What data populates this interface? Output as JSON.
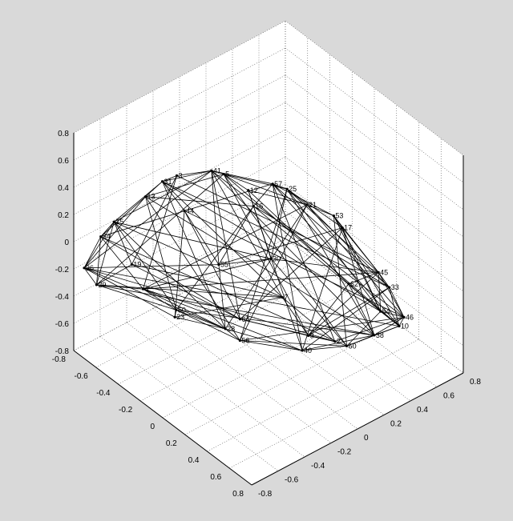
{
  "chart_data": {
    "type": "network-3d",
    "title": "",
    "xlabel": "",
    "ylabel": "",
    "zlabel": "",
    "xlim": [
      -0.8,
      0.8
    ],
    "ylim": [
      -0.8,
      0.8
    ],
    "zlim": [
      -0.8,
      0.8
    ],
    "grid": true,
    "z_ticks": [
      "-0.8",
      "-0.6",
      "-0.4",
      "-0.2",
      "0",
      "0.2",
      "0.4",
      "0.6",
      "0.8"
    ],
    "x_ticks": [
      "-0.8",
      "-0.6",
      "-0.4",
      "-0.2",
      "0",
      "0.2",
      "0.4",
      "0.6",
      "0.8"
    ],
    "y_ticks": [
      "-0.8",
      "-0.6",
      "-0.4",
      "-0.2",
      "0",
      "0.2",
      "0.4",
      "0.6",
      "0.8"
    ],
    "nodes": [
      {
        "id": "41",
        "x": -0.12,
        "y": -0.33,
        "z": 0.7
      },
      {
        "id": "5",
        "x": -0.07,
        "y": -0.28,
        "z": 0.68
      },
      {
        "id": "57",
        "x": 0.18,
        "y": -0.12,
        "z": 0.68
      },
      {
        "id": "25",
        "x": 0.25,
        "y": -0.07,
        "z": 0.66
      },
      {
        "id": "31",
        "x": -0.36,
        "y": -0.5,
        "z": 0.56
      },
      {
        "id": "13",
        "x": -0.44,
        "y": -0.56,
        "z": 0.43
      },
      {
        "id": "21",
        "x": 0.31,
        "y": 0.03,
        "z": 0.53
      },
      {
        "id": "53",
        "x": 0.42,
        "y": 0.14,
        "z": 0.46
      },
      {
        "id": "17",
        "x": 0.45,
        "y": 0.18,
        "z": 0.37
      },
      {
        "id": "15",
        "x": -0.58,
        "y": -0.68,
        "z": 0.22
      },
      {
        "id": "54",
        "x": -0.64,
        "y": -0.73,
        "z": 0.1
      },
      {
        "id": "45",
        "x": 0.62,
        "y": 0.31,
        "z": 0.08
      },
      {
        "id": "33",
        "x": 0.67,
        "y": 0.35,
        "z": -0.02
      },
      {
        "id": "36",
        "x": -0.73,
        "y": -0.78,
        "z": -0.16
      },
      {
        "id": "29",
        "x": -0.69,
        "y": -0.72,
        "z": -0.29
      },
      {
        "id": "55",
        "x": -0.15,
        "y": -0.25,
        "z": -0.05
      },
      {
        "id": "30",
        "x": 0.07,
        "y": -0.04,
        "z": 0.02
      },
      {
        "id": "16",
        "x": -0.04,
        "y": -0.08,
        "z": 0.36
      },
      {
        "id": "54",
        "x": 0.52,
        "y": 0.41,
        "z": -0.32
      },
      {
        "id": "46",
        "x": 0.6,
        "y": 0.52,
        "z": -0.37
      },
      {
        "id": "10",
        "x": 0.52,
        "y": 0.55,
        "z": -0.5
      },
      {
        "id": "38",
        "x": 0.32,
        "y": 0.53,
        "z": -0.68
      },
      {
        "id": "60",
        "x": 0.18,
        "y": 0.44,
        "z": -0.8
      },
      {
        "id": "40",
        "x": -0.03,
        "y": 0.28,
        "z": -0.88
      },
      {
        "id": "56",
        "x": -0.34,
        "y": 0.07,
        "z": -0.89
      },
      {
        "id": "28",
        "x": -0.4,
        "y": 0.01,
        "z": -0.81
      },
      {
        "id": "50",
        "x": -0.58,
        "y": -0.21,
        "z": -0.67
      },
      {
        "id": "4",
        "x": -0.64,
        "y": -0.41,
        "z": -0.45
      },
      {
        "id": "64",
        "x": -0.28,
        "y": 0.02,
        "z": -0.67
      },
      {
        "id": "9",
        "x": 0.06,
        "y": 0.25,
        "z": -0.7
      },
      {
        "id": "2",
        "x": 0.18,
        "y": 0.35,
        "z": -0.72
      },
      {
        "id": "7",
        "x": 0.03,
        "y": 0.08,
        "z": -0.35
      },
      {
        "id": "3",
        "x": -0.29,
        "y": -0.45,
        "z": 0.62
      },
      {
        "id": "12",
        "x": 0.02,
        "y": -0.17,
        "z": 0.56
      },
      {
        "id": "44",
        "x": -0.34,
        "y": -0.35,
        "z": 0.28
      },
      {
        "id": "62",
        "x": 0.4,
        "y": 0.27,
        "z": -0.12
      },
      {
        "id": "19",
        "x": -0.54,
        "y": -0.58,
        "z": -0.12
      },
      {
        "id": "23",
        "x": -0.45,
        "y": -0.33,
        "z": -0.58
      }
    ],
    "edges": [
      [
        0,
        1
      ],
      [
        0,
        2
      ],
      [
        0,
        4
      ],
      [
        0,
        13
      ],
      [
        0,
        21
      ],
      [
        0,
        28
      ],
      [
        1,
        3
      ],
      [
        1,
        5
      ],
      [
        1,
        6
      ],
      [
        1,
        22
      ],
      [
        1,
        29
      ],
      [
        2,
        3
      ],
      [
        2,
        7
      ],
      [
        2,
        10
      ],
      [
        2,
        23
      ],
      [
        2,
        30
      ],
      [
        3,
        6
      ],
      [
        3,
        8
      ],
      [
        3,
        11
      ],
      [
        3,
        24
      ],
      [
        4,
        5
      ],
      [
        4,
        9
      ],
      [
        4,
        12
      ],
      [
        4,
        25
      ],
      [
        5,
        10
      ],
      [
        5,
        13
      ],
      [
        5,
        26
      ],
      [
        6,
        7
      ],
      [
        6,
        12
      ],
      [
        6,
        19
      ],
      [
        6,
        27
      ],
      [
        7,
        8
      ],
      [
        7,
        11
      ],
      [
        7,
        18
      ],
      [
        7,
        20
      ],
      [
        8,
        11
      ],
      [
        8,
        18
      ],
      [
        8,
        21
      ],
      [
        9,
        10
      ],
      [
        9,
        13
      ],
      [
        9,
        14
      ],
      [
        9,
        26
      ],
      [
        10,
        13
      ],
      [
        10,
        14
      ],
      [
        10,
        27
      ],
      [
        11,
        12
      ],
      [
        11,
        18
      ],
      [
        11,
        19
      ],
      [
        12,
        19
      ],
      [
        12,
        20
      ],
      [
        13,
        14
      ],
      [
        13,
        25
      ],
      [
        14,
        26
      ],
      [
        14,
        27
      ],
      [
        15,
        16
      ],
      [
        15,
        17
      ],
      [
        15,
        0
      ],
      [
        15,
        13
      ],
      [
        15,
        25
      ],
      [
        16,
        17
      ],
      [
        16,
        11
      ],
      [
        16,
        3
      ],
      [
        16,
        22
      ],
      [
        17,
        2
      ],
      [
        17,
        5
      ],
      [
        17,
        20
      ],
      [
        18,
        19
      ],
      [
        18,
        20
      ],
      [
        19,
        20
      ],
      [
        19,
        21
      ],
      [
        20,
        21
      ],
      [
        20,
        22
      ],
      [
        21,
        22
      ],
      [
        21,
        23
      ],
      [
        22,
        23
      ],
      [
        22,
        24
      ],
      [
        23,
        24
      ],
      [
        23,
        25
      ],
      [
        24,
        25
      ],
      [
        24,
        26
      ],
      [
        25,
        26
      ],
      [
        25,
        27
      ],
      [
        26,
        27
      ],
      [
        27,
        28
      ],
      [
        28,
        29
      ],
      [
        28,
        30
      ],
      [
        29,
        30
      ],
      [
        29,
        31
      ],
      [
        30,
        31
      ],
      [
        30,
        19
      ],
      [
        31,
        0
      ],
      [
        31,
        4
      ],
      [
        31,
        9
      ],
      [
        2,
        20
      ],
      [
        3,
        21
      ],
      [
        6,
        24
      ],
      [
        7,
        22
      ],
      [
        8,
        23
      ],
      [
        9,
        25
      ],
      [
        10,
        28
      ],
      [
        12,
        29
      ],
      [
        13,
        30
      ],
      [
        14,
        31
      ],
      [
        0,
        19
      ],
      [
        1,
        20
      ],
      [
        4,
        18
      ],
      [
        5,
        24
      ],
      [
        6,
        25
      ],
      [
        11,
        27
      ],
      [
        15,
        8
      ],
      [
        16,
        27
      ],
      [
        17,
        26
      ],
      [
        0,
        9
      ],
      [
        1,
        14
      ],
      [
        2,
        12
      ],
      [
        3,
        18
      ],
      [
        5,
        21
      ],
      [
        8,
        28
      ],
      [
        10,
        22
      ],
      [
        11,
        29
      ],
      [
        12,
        23
      ],
      [
        13,
        20
      ],
      [
        14,
        21
      ],
      [
        16,
        9
      ],
      [
        17,
        12
      ],
      [
        18,
        22
      ],
      [
        19,
        24
      ],
      [
        21,
        26
      ],
      [
        23,
        27
      ],
      [
        32,
        0
      ],
      [
        32,
        4
      ],
      [
        32,
        11
      ],
      [
        32,
        27
      ],
      [
        33,
        1
      ],
      [
        33,
        6
      ],
      [
        33,
        17
      ],
      [
        33,
        23
      ],
      [
        34,
        4
      ],
      [
        34,
        15
      ],
      [
        34,
        19
      ],
      [
        34,
        28
      ],
      [
        35,
        11
      ],
      [
        35,
        18
      ],
      [
        35,
        21
      ],
      [
        35,
        29
      ],
      [
        36,
        9
      ],
      [
        36,
        14
      ],
      [
        36,
        28
      ],
      [
        36,
        31
      ],
      [
        37,
        13
      ],
      [
        37,
        26
      ],
      [
        37,
        31
      ],
      [
        37,
        25
      ],
      [
        32,
        36
      ],
      [
        33,
        35
      ],
      [
        34,
        37
      ]
    ]
  }
}
